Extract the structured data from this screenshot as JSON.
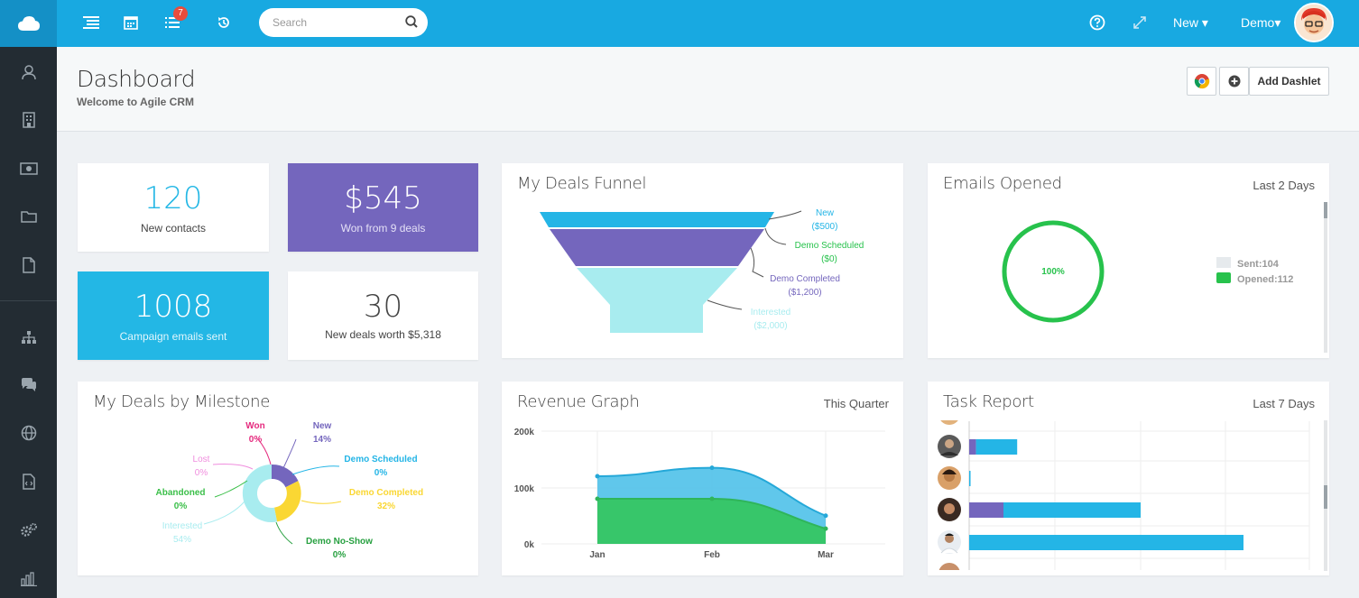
{
  "topbar": {
    "notification_count": "7",
    "search_placeholder": "Search",
    "new_label": "New",
    "user_label": "Demo"
  },
  "sidebar": {
    "items": [
      "contacts",
      "companies",
      "deals",
      "documents",
      "files",
      "workflows",
      "helpdesk",
      "web-rules",
      "landing-pages",
      "settings",
      "reports"
    ]
  },
  "header": {
    "title": "Dashboard",
    "subtitle": "Welcome to Agile CRM",
    "add_dashlet_label": "Add Dashlet"
  },
  "stats": {
    "contacts": {
      "value": "120",
      "label": "New contacts"
    },
    "won": {
      "value": "$545",
      "label": "Won from 9 deals"
    },
    "campaign": {
      "value": "1008",
      "label": "Campaign emails sent"
    },
    "deals": {
      "value": "30",
      "label": "New deals worth $5,318"
    }
  },
  "colors": {
    "topbar": "#18a9e1",
    "sidebar": "#232c33",
    "purple": "#7466bd",
    "blue": "#24b5e6",
    "green": "#27c24c"
  },
  "funnel": {
    "title": "My Deals Funnel",
    "stages": [
      {
        "name": "New",
        "amount": "($500)",
        "color": "#24b5e6"
      },
      {
        "name": "Demo Scheduled",
        "amount": "($0)",
        "color": "#27c24c"
      },
      {
        "name": "Demo Completed",
        "amount": "($1,200)",
        "color": "#7466bd"
      },
      {
        "name": "Interested",
        "amount": "($2,000)",
        "color": "#a8ecef"
      }
    ]
  },
  "emails": {
    "title": "Emails Opened",
    "range": "Last 2 Days",
    "percent_label": "100%",
    "legend": [
      {
        "label": "Sent:104",
        "color": "#e6eaed"
      },
      {
        "label": "Opened:112",
        "color": "#27c24c"
      }
    ]
  },
  "milestone": {
    "title": "My Deals by Milestone",
    "labels": [
      {
        "name": "Won",
        "pct": "0%",
        "color": "#e52a7e"
      },
      {
        "name": "New",
        "pct": "14%",
        "color": "#7466bd"
      },
      {
        "name": "Lost",
        "pct": "0%",
        "color": "#f08ede"
      },
      {
        "name": "Demo Scheduled",
        "pct": "0%",
        "color": "#24b5e6"
      },
      {
        "name": "Abandoned",
        "pct": "0%",
        "color": "#3bbf49"
      },
      {
        "name": "Demo Completed",
        "pct": "32%",
        "color": "#fad733"
      },
      {
        "name": "Interested",
        "pct": "54%",
        "color": "#a8ecef"
      },
      {
        "name": "Demo No-Show",
        "pct": "0%",
        "color": "#27a040"
      }
    ]
  },
  "revenue": {
    "title": "Revenue Graph",
    "range": "This Quarter",
    "y_ticks": [
      "200k",
      "100k",
      "0k"
    ],
    "x_ticks": [
      "Jan",
      "Feb",
      "Mar"
    ]
  },
  "tasks": {
    "title": "Task Report",
    "range": "Last 7 Days"
  },
  "chart_data": [
    {
      "type": "area",
      "x": [
        "Jan",
        "Feb",
        "Mar"
      ],
      "ylim": [
        0,
        200000
      ],
      "series": [
        {
          "values": [
            120000,
            135000,
            50000
          ],
          "color": "#4fc1e9"
        },
        {
          "values": [
            80000,
            80000,
            27000
          ],
          "color": "#37c66a"
        }
      ]
    },
    {
      "type": "pie",
      "categories": [
        "New",
        "Demo Completed",
        "Interested",
        "Won",
        "Lost",
        "Demo Scheduled",
        "Abandoned",
        "Demo No-Show"
      ],
      "values": [
        14,
        32,
        54,
        0,
        0,
        0,
        0,
        0
      ]
    },
    {
      "type": "bar",
      "categories": [
        "user-1",
        "user-2",
        "user-3",
        "user-4"
      ],
      "series": [
        {
          "values": [
            1,
            0,
            5,
            0
          ],
          "color": "#7466bd"
        },
        {
          "values": [
            6,
            0.2,
            20,
            40
          ],
          "color": "#24b5e6"
        }
      ]
    },
    {
      "type": "pie",
      "categories": [
        "Sent",
        "Opened"
      ],
      "values": [
        104,
        112
      ]
    }
  ]
}
